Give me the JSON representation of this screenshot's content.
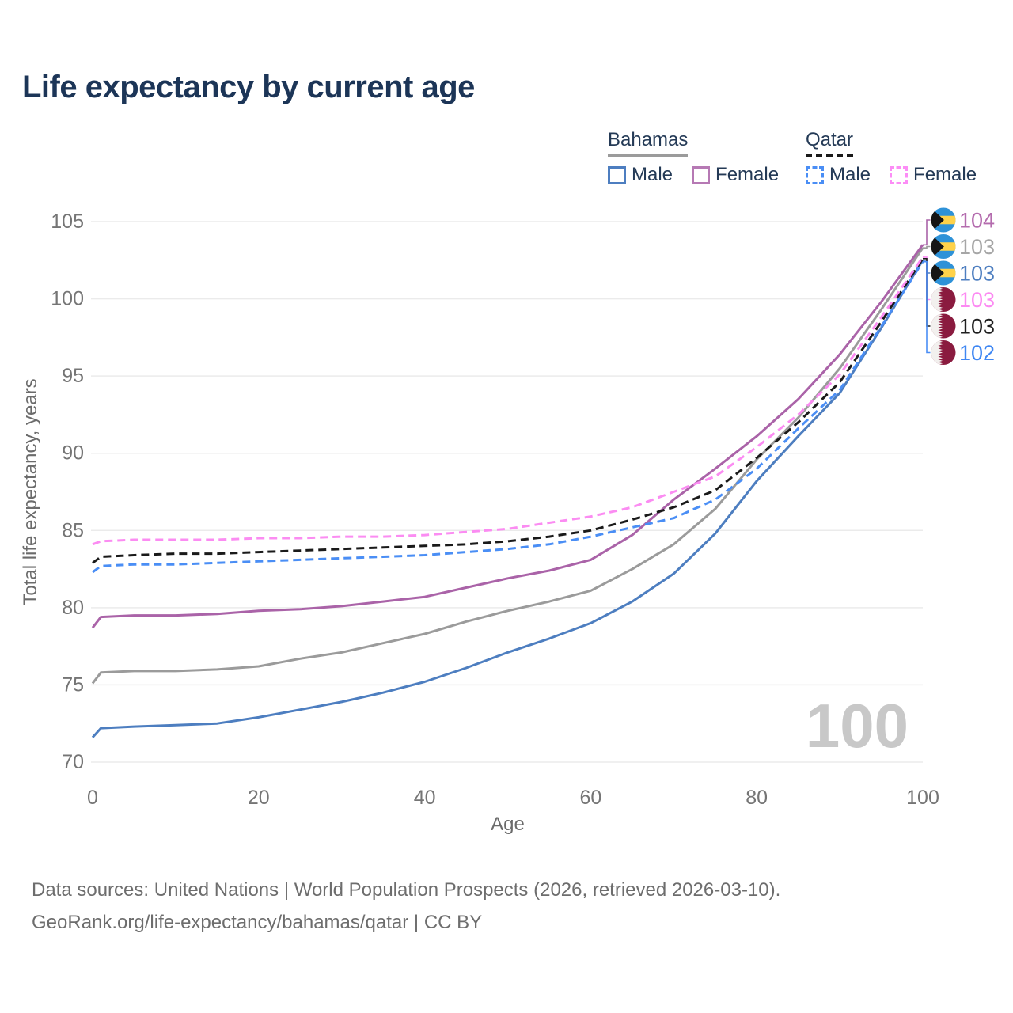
{
  "title": "Life expectancy by current age",
  "legend": {
    "groups": [
      {
        "name": "Bahamas",
        "line_style": "solid",
        "line_color": "#9b9b9b",
        "items": [
          {
            "label": "Male",
            "color": "#4d7ec0"
          },
          {
            "label": "Female",
            "color": "#b679b4"
          }
        ]
      },
      {
        "name": "Qatar",
        "line_style": "dashed",
        "line_color": "#1a1a1a",
        "items": [
          {
            "label": "Male",
            "color": "#4a8ef5"
          },
          {
            "label": "Female",
            "color": "#fc8df6"
          }
        ]
      }
    ]
  },
  "chart_data": {
    "type": "line",
    "title": "Life expectancy by current age",
    "xlabel": "Age",
    "ylabel": "Total life expectancy, years",
    "xlim": [
      0,
      100
    ],
    "ylim": [
      70,
      105
    ],
    "x_ticks": [
      0,
      20,
      40,
      60,
      80,
      100
    ],
    "y_ticks": [
      70,
      75,
      80,
      85,
      90,
      95,
      100,
      105
    ],
    "grid": "horizontal",
    "legend_position": "top-right",
    "watermark": "100",
    "x": [
      0,
      1,
      5,
      10,
      15,
      20,
      25,
      30,
      35,
      40,
      45,
      50,
      55,
      60,
      65,
      70,
      75,
      80,
      85,
      90,
      95,
      100
    ],
    "series": [
      {
        "name": "Bahamas Female",
        "country": "Bahamas",
        "sex": "Female",
        "color": "#aa63a8",
        "label_color": "#b46cae",
        "dashed": false,
        "flag": "bahamas",
        "end_label": "104",
        "values": [
          78.7,
          79.4,
          79.5,
          79.5,
          79.6,
          79.8,
          79.9,
          80.1,
          80.4,
          80.7,
          81.3,
          81.9,
          82.4,
          83.1,
          84.7,
          87.0,
          89.0,
          91.1,
          93.5,
          96.4,
          99.8,
          103.5
        ]
      },
      {
        "name": "Bahamas Total",
        "country": "Bahamas",
        "sex": "Both",
        "color": "#9b9b9b",
        "label_color": "#a6a6a6",
        "dashed": false,
        "flag": "bahamas",
        "end_label": "103",
        "values": [
          75.1,
          75.8,
          75.9,
          75.9,
          76.0,
          76.2,
          76.7,
          77.1,
          77.7,
          78.3,
          79.1,
          79.8,
          80.4,
          81.1,
          82.5,
          84.1,
          86.4,
          89.6,
          92.3,
          95.5,
          99.3,
          103.3
        ]
      },
      {
        "name": "Bahamas Male",
        "country": "Bahamas",
        "sex": "Male",
        "color": "#4d7ec0",
        "label_color": "#4d7ec0",
        "dashed": false,
        "flag": "bahamas",
        "end_label": "103",
        "values": [
          71.6,
          72.2,
          72.3,
          72.4,
          72.5,
          72.9,
          73.4,
          73.9,
          74.5,
          75.2,
          76.1,
          77.1,
          78.0,
          79.0,
          80.4,
          82.2,
          84.8,
          88.2,
          91.1,
          93.9,
          98.1,
          102.5
        ]
      },
      {
        "name": "Qatar Female",
        "country": "Qatar",
        "sex": "Female",
        "color": "#fb8cf2",
        "label_color": "#fc8af2",
        "dashed": true,
        "flag": "qatar",
        "end_label": "103",
        "values": [
          84.1,
          84.3,
          84.4,
          84.4,
          84.4,
          84.5,
          84.5,
          84.6,
          84.6,
          84.7,
          84.9,
          85.1,
          85.5,
          85.9,
          86.5,
          87.5,
          88.5,
          90.4,
          92.5,
          95.1,
          98.8,
          102.7
        ]
      },
      {
        "name": "Qatar Total",
        "country": "Qatar",
        "sex": "Both",
        "color": "#1a1a1a",
        "label_color": "#1f1f1f",
        "dashed": true,
        "flag": "qatar",
        "end_label": "103",
        "values": [
          82.9,
          83.3,
          83.4,
          83.5,
          83.5,
          83.6,
          83.7,
          83.8,
          83.9,
          84.0,
          84.1,
          84.3,
          84.6,
          85.0,
          85.7,
          86.5,
          87.6,
          89.7,
          92.0,
          94.6,
          98.5,
          102.6
        ]
      },
      {
        "name": "Qatar Male",
        "country": "Qatar",
        "sex": "Male",
        "color": "#4a8ef5",
        "label_color": "#3f87f3",
        "dashed": true,
        "flag": "qatar",
        "end_label": "102",
        "values": [
          82.3,
          82.7,
          82.8,
          82.8,
          82.9,
          83.0,
          83.1,
          83.2,
          83.3,
          83.4,
          83.6,
          83.8,
          84.1,
          84.6,
          85.2,
          85.8,
          87.0,
          89.0,
          91.6,
          94.1,
          98.2,
          102.4
        ]
      }
    ]
  },
  "footer": {
    "line1": "Data sources: United Nations | World Population Prospects (2026, retrieved 2026-03-10).",
    "line2": "GeoRank.org/life-expectancy/bahamas/qatar | CC BY"
  }
}
